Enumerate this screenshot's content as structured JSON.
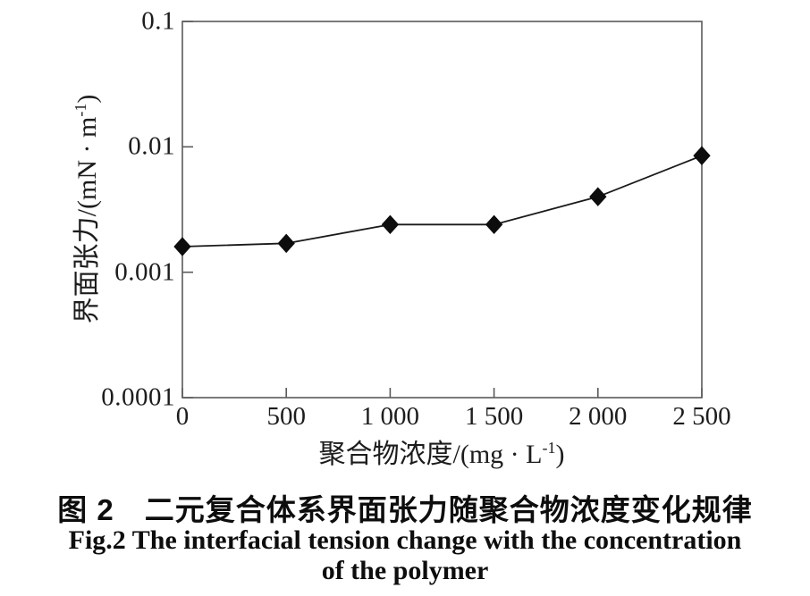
{
  "figure": {
    "caption_cn": "图 2　二元复合体系界面张力随聚合物浓度变化规律",
    "caption_en_line1": "Fig.2 The interfacial tension change with the concentration",
    "caption_en_line2": "of the polymer"
  },
  "chart_data": {
    "type": "line",
    "x": [
      0,
      500,
      1000,
      1500,
      2000,
      2500
    ],
    "series": [
      {
        "name": "interfacial-tension",
        "values": [
          0.0016,
          0.0017,
          0.0024,
          0.0024,
          0.004,
          0.0085
        ]
      }
    ],
    "x_tick_labels": [
      "0",
      "500",
      "1 000",
      "1 500",
      "2 000",
      "2 500"
    ],
    "y_tick_labels": [
      "0.1",
      "0.01",
      "0.001",
      "0.0001"
    ],
    "y_ticks": [
      0.1,
      0.01,
      0.001,
      0.0001
    ],
    "xlabel": {
      "pre": "聚合物浓度/(mg · L",
      "sup": "-1",
      "post": ")"
    },
    "ylabel": {
      "pre": "界面张力/(mN · m",
      "sup": "-1",
      "post": ")"
    },
    "xlim": [
      0,
      2500
    ],
    "ylim": [
      0.0001,
      0.1
    ],
    "y_scale": "log",
    "x_scale": "linear",
    "grid": false,
    "legend_position": "none",
    "marker": "diamond",
    "colors": {
      "line": "#1a1a1a",
      "marker": "#0d0d0d",
      "axis": "#5a5a5a",
      "text": "#1c1c1c"
    }
  }
}
